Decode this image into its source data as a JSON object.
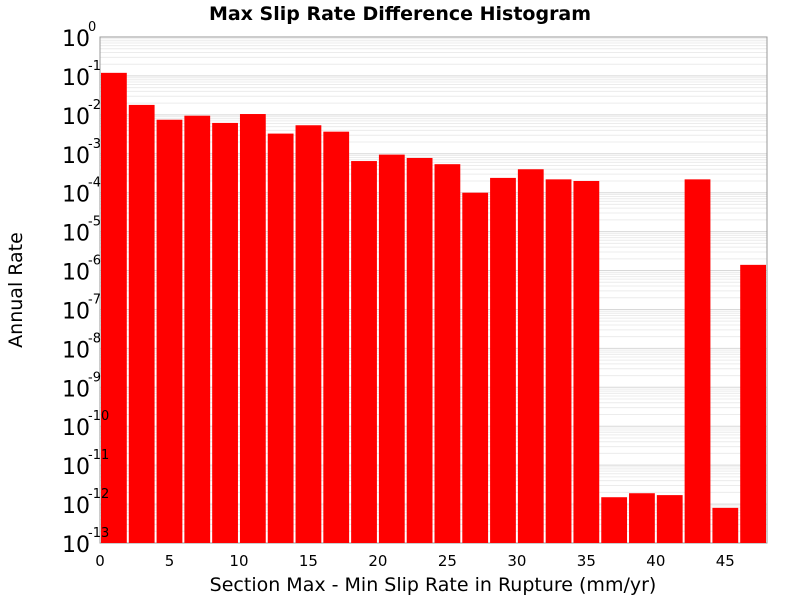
{
  "chart_data": {
    "type": "bar",
    "title": "Max Slip Rate Difference Histogram",
    "xlabel": "Section Max - Min Slip Rate in Rupture (mm/yr)",
    "ylabel": "Annual Rate",
    "y_scale": "log",
    "ylim": [
      1e-13,
      1
    ],
    "xlim": [
      0,
      48
    ],
    "bin_width": 2,
    "x_ticks": [
      "0",
      "5",
      "10",
      "15",
      "20",
      "25",
      "30",
      "35",
      "40",
      "45"
    ],
    "y_ticks": [
      {
        "base": "10",
        "exp": "0"
      },
      {
        "base": "10",
        "exp": "-1"
      },
      {
        "base": "10",
        "exp": "-2"
      },
      {
        "base": "10",
        "exp": "-3"
      },
      {
        "base": "10",
        "exp": "-4"
      },
      {
        "base": "10",
        "exp": "-5"
      },
      {
        "base": "10",
        "exp": "-6"
      },
      {
        "base": "10",
        "exp": "-7"
      },
      {
        "base": "10",
        "exp": "-8"
      },
      {
        "base": "10",
        "exp": "-9"
      },
      {
        "base": "10",
        "exp": "-10"
      },
      {
        "base": "10",
        "exp": "-11"
      },
      {
        "base": "10",
        "exp": "-12"
      },
      {
        "base": "10",
        "exp": "-13"
      }
    ],
    "x": [
      1,
      3,
      5,
      7,
      9,
      11,
      13,
      15,
      17,
      19,
      21,
      23,
      25,
      27,
      29,
      31,
      33,
      35,
      37,
      39,
      41,
      43,
      45,
      47
    ],
    "values": [
      0.12,
      0.018,
      0.0075,
      0.0095,
      0.0062,
      0.0105,
      0.0033,
      0.0054,
      0.0037,
      0.00065,
      0.00095,
      0.00078,
      0.00054,
      0.0001,
      0.00024,
      0.0004,
      0.00022,
      0.0002,
      1.5e-12,
      1.9e-12,
      1.7e-12,
      0.00022,
      8e-13,
      1.4e-06
    ],
    "grid": true,
    "bar_color": "#ff0000"
  }
}
